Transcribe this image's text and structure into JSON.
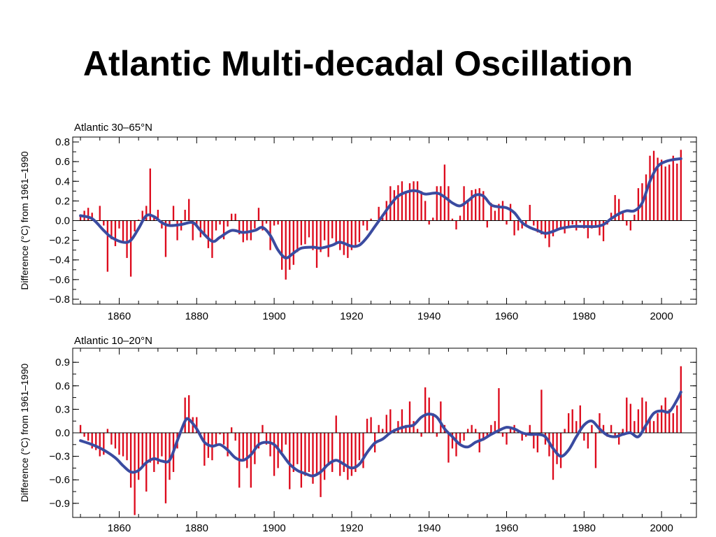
{
  "title": "Atlantic Multi-decadal Oscillation",
  "colors": {
    "bar": "#dd0a1c",
    "smooth": "#3a4ba0",
    "axis": "#000000"
  },
  "chart_data": [
    {
      "type": "bar",
      "panel_label": "Atlantic 30–65°N",
      "ylabel": "Difference (°C) from 1961–1990",
      "xlim": [
        1848,
        2009
      ],
      "ylim": [
        -0.85,
        0.85
      ],
      "yticks": [
        0.8,
        0.6,
        0.4,
        0.2,
        0.0,
        -0.2,
        -0.4,
        -0.6,
        -0.8
      ],
      "ytick_labels": [
        "0.8",
        "0.6",
        "0.4",
        "0.2",
        "0.0",
        "−0.2",
        "−0.4",
        "−0.6",
        "−0.8"
      ],
      "xticks": [
        1860,
        1880,
        1900,
        1920,
        1940,
        1960,
        1980,
        2000
      ],
      "xtick_labels": [
        "1860",
        "1880",
        "1900",
        "1920",
        "1940",
        "1960",
        "1980",
        "2000"
      ],
      "x_start": 1850,
      "values": [
        0.06,
        0.1,
        0.13,
        0.08,
        -0.02,
        0.15,
        -0.05,
        -0.52,
        -0.19,
        -0.26,
        -0.08,
        -0.21,
        -0.38,
        -0.57,
        -0.11,
        0.01,
        0.1,
        0.15,
        0.53,
        0.04,
        0.11,
        -0.08,
        -0.37,
        -0.05,
        0.15,
        -0.2,
        -0.1,
        0.11,
        0.22,
        -0.2,
        -0.05,
        -0.17,
        -0.15,
        -0.28,
        -0.38,
        -0.1,
        -0.04,
        -0.19,
        -0.06,
        0.07,
        0.07,
        -0.14,
        -0.22,
        -0.2,
        -0.2,
        -0.08,
        0.13,
        -0.1,
        -0.03,
        -0.3,
        -0.05,
        -0.04,
        -0.5,
        -0.6,
        -0.5,
        -0.45,
        -0.32,
        -0.25,
        -0.24,
        -0.17,
        -0.3,
        -0.48,
        -0.32,
        -0.2,
        -0.37,
        -0.18,
        -0.24,
        -0.3,
        -0.35,
        -0.38,
        -0.3,
        -0.26,
        -0.22,
        -0.05,
        -0.1,
        0.02,
        0.0,
        0.14,
        0.03,
        0.2,
        0.35,
        0.31,
        0.36,
        0.4,
        0.29,
        0.38,
        0.4,
        0.4,
        0.3,
        0.2,
        -0.04,
        0.03,
        0.35,
        0.35,
        0.57,
        0.35,
        0.02,
        -0.09,
        0.05,
        0.35,
        0.2,
        0.31,
        0.32,
        0.33,
        0.3,
        -0.07,
        0.18,
        0.1,
        0.17,
        0.2,
        -0.04,
        0.17,
        -0.15,
        -0.1,
        -0.08,
        -0.05,
        0.16,
        -0.05,
        -0.12,
        -0.14,
        -0.18,
        -0.27,
        -0.16,
        -0.09,
        -0.07,
        -0.13,
        -0.07,
        -0.04,
        -0.1,
        -0.02,
        -0.08,
        -0.18,
        -0.08,
        -0.05,
        -0.15,
        -0.21,
        -0.04,
        0.08,
        0.26,
        0.22,
        0.09,
        -0.05,
        -0.1,
        0.06,
        0.33,
        0.38,
        0.47,
        0.66,
        0.71,
        0.64,
        0.62,
        0.55,
        0.57,
        0.66,
        0.58,
        0.72
      ],
      "smooth": [
        [
          1850,
          0.05
        ],
        [
          1853,
          0.02
        ],
        [
          1856,
          -0.1
        ],
        [
          1858,
          -0.17
        ],
        [
          1861,
          -0.22
        ],
        [
          1863,
          -0.2
        ],
        [
          1865,
          -0.08
        ],
        [
          1867,
          0.05
        ],
        [
          1869,
          0.04
        ],
        [
          1871,
          -0.02
        ],
        [
          1873,
          -0.05
        ],
        [
          1876,
          -0.04
        ],
        [
          1879,
          -0.02
        ],
        [
          1881,
          -0.1
        ],
        [
          1884,
          -0.21
        ],
        [
          1886,
          -0.17
        ],
        [
          1889,
          -0.1
        ],
        [
          1892,
          -0.12
        ],
        [
          1895,
          -0.1
        ],
        [
          1897,
          -0.07
        ],
        [
          1899,
          -0.15
        ],
        [
          1901,
          -0.3
        ],
        [
          1903,
          -0.38
        ],
        [
          1905,
          -0.33
        ],
        [
          1907,
          -0.28
        ],
        [
          1910,
          -0.27
        ],
        [
          1912,
          -0.28
        ],
        [
          1915,
          -0.25
        ],
        [
          1917,
          -0.22
        ],
        [
          1920,
          -0.26
        ],
        [
          1922,
          -0.25
        ],
        [
          1924,
          -0.17
        ],
        [
          1926,
          -0.06
        ],
        [
          1928,
          0.05
        ],
        [
          1930,
          0.16
        ],
        [
          1932,
          0.25
        ],
        [
          1935,
          0.3
        ],
        [
          1937,
          0.3
        ],
        [
          1939,
          0.27
        ],
        [
          1942,
          0.28
        ],
        [
          1944,
          0.24
        ],
        [
          1946,
          0.18
        ],
        [
          1948,
          0.15
        ],
        [
          1950,
          0.2
        ],
        [
          1952,
          0.26
        ],
        [
          1954,
          0.25
        ],
        [
          1956,
          0.16
        ],
        [
          1958,
          0.14
        ],
        [
          1960,
          0.13
        ],
        [
          1962,
          0.08
        ],
        [
          1964,
          -0.02
        ],
        [
          1966,
          -0.07
        ],
        [
          1968,
          -0.1
        ],
        [
          1970,
          -0.13
        ],
        [
          1972,
          -0.11
        ],
        [
          1974,
          -0.08
        ],
        [
          1977,
          -0.06
        ],
        [
          1980,
          -0.06
        ],
        [
          1983,
          -0.06
        ],
        [
          1985,
          -0.04
        ],
        [
          1987,
          0.02
        ],
        [
          1989,
          0.07
        ],
        [
          1991,
          0.1
        ],
        [
          1993,
          0.1
        ],
        [
          1995,
          0.18
        ],
        [
          1997,
          0.4
        ],
        [
          1999,
          0.55
        ],
        [
          2001,
          0.6
        ],
        [
          2003,
          0.62
        ],
        [
          2005,
          0.63
        ]
      ]
    },
    {
      "type": "bar",
      "panel_label": "Atlantic 10–20°N",
      "ylabel": "Difference (°C) from 1961–1990",
      "xlim": [
        1848,
        2009
      ],
      "ylim": [
        -1.08,
        1.08
      ],
      "yticks": [
        0.9,
        0.6,
        0.3,
        0.0,
        -0.3,
        -0.6,
        -0.9
      ],
      "ytick_labels": [
        "0.9",
        "0.6",
        "0.3",
        "0.0",
        "−0.3",
        "−0.6",
        "−0.9"
      ],
      "xticks": [
        1860,
        1880,
        1900,
        1920,
        1940,
        1960,
        1980,
        2000
      ],
      "xtick_labels": [
        "1860",
        "1880",
        "1900",
        "1920",
        "1940",
        "1960",
        "1980",
        "2000"
      ],
      "x_start": 1850,
      "values": [
        0.1,
        -0.05,
        -0.1,
        -0.2,
        -0.22,
        -0.3,
        -0.28,
        0.05,
        -0.15,
        -0.2,
        -0.28,
        -0.3,
        -0.35,
        -0.7,
        -1.05,
        -0.6,
        -0.45,
        -0.75,
        -0.38,
        -0.5,
        -0.4,
        -0.3,
        -0.9,
        -0.6,
        -0.5,
        -0.2,
        0.05,
        0.45,
        0.48,
        0.2,
        0.2,
        -0.05,
        -0.42,
        -0.32,
        -0.35,
        -0.17,
        -0.02,
        -0.15,
        -0.3,
        0.07,
        -0.1,
        -0.7,
        -0.35,
        -0.45,
        -0.7,
        -0.4,
        -0.2,
        0.1,
        -0.15,
        -0.3,
        -0.55,
        -0.45,
        -0.25,
        -0.15,
        -0.72,
        -0.5,
        -0.4,
        -0.7,
        -0.55,
        -0.5,
        -0.65,
        -0.52,
        -0.82,
        -0.6,
        -0.42,
        -0.5,
        0.22,
        -0.55,
        -0.5,
        -0.6,
        -0.55,
        -0.5,
        -0.35,
        -0.45,
        0.18,
        0.2,
        -0.25,
        0.1,
        0.05,
        0.23,
        0.3,
        0.05,
        0.15,
        0.3,
        0.1,
        0.4,
        0.15,
        0.05,
        -0.05,
        0.58,
        0.45,
        0.25,
        -0.05,
        0.4,
        0.1,
        -0.38,
        -0.2,
        -0.3,
        -0.15,
        -0.1,
        0.05,
        0.1,
        0.05,
        -0.25,
        -0.1,
        -0.05,
        0.1,
        0.15,
        0.57,
        -0.05,
        -0.15,
        0.05,
        0.1,
        0.02,
        -0.1,
        -0.05,
        0.1,
        -0.2,
        -0.25,
        0.55,
        -0.15,
        -0.3,
        -0.6,
        -0.4,
        -0.45,
        0.05,
        0.25,
        0.3,
        0.15,
        0.35,
        -0.1,
        -0.2,
        0.1,
        -0.45,
        0.25,
        0.1,
        -0.05,
        0.1,
        -0.05,
        -0.15,
        0.05,
        0.45,
        0.37,
        0.15,
        0.3,
        0.45,
        0.4,
        0.2,
        0.15,
        0.25,
        0.35,
        0.45,
        0.3,
        0.25,
        0.35,
        0.85
      ],
      "smooth": [
        [
          1850,
          -0.1
        ],
        [
          1853,
          -0.15
        ],
        [
          1856,
          -0.22
        ],
        [
          1859,
          -0.32
        ],
        [
          1861,
          -0.42
        ],
        [
          1863,
          -0.5
        ],
        [
          1865,
          -0.48
        ],
        [
          1867,
          -0.38
        ],
        [
          1869,
          -0.33
        ],
        [
          1871,
          -0.36
        ],
        [
          1873,
          -0.35
        ],
        [
          1875,
          -0.1
        ],
        [
          1877,
          0.15
        ],
        [
          1878,
          0.17
        ],
        [
          1880,
          0.05
        ],
        [
          1882,
          -0.12
        ],
        [
          1884,
          -0.17
        ],
        [
          1886,
          -0.15
        ],
        [
          1888,
          -0.22
        ],
        [
          1890,
          -0.32
        ],
        [
          1892,
          -0.35
        ],
        [
          1894,
          -0.28
        ],
        [
          1896,
          -0.15
        ],
        [
          1898,
          -0.12
        ],
        [
          1900,
          -0.15
        ],
        [
          1902,
          -0.27
        ],
        [
          1904,
          -0.4
        ],
        [
          1906,
          -0.48
        ],
        [
          1908,
          -0.52
        ],
        [
          1910,
          -0.55
        ],
        [
          1912,
          -0.5
        ],
        [
          1914,
          -0.4
        ],
        [
          1916,
          -0.35
        ],
        [
          1918,
          -0.4
        ],
        [
          1920,
          -0.45
        ],
        [
          1922,
          -0.4
        ],
        [
          1924,
          -0.25
        ],
        [
          1926,
          -0.13
        ],
        [
          1928,
          -0.08
        ],
        [
          1930,
          0.0
        ],
        [
          1932,
          0.05
        ],
        [
          1934,
          0.08
        ],
        [
          1936,
          0.1
        ],
        [
          1938,
          0.2
        ],
        [
          1940,
          0.24
        ],
        [
          1942,
          0.2
        ],
        [
          1944,
          0.05
        ],
        [
          1946,
          -0.05
        ],
        [
          1948,
          -0.15
        ],
        [
          1950,
          -0.18
        ],
        [
          1952,
          -0.12
        ],
        [
          1954,
          -0.08
        ],
        [
          1956,
          -0.02
        ],
        [
          1958,
          0.03
        ],
        [
          1960,
          0.07
        ],
        [
          1962,
          0.05
        ],
        [
          1964,
          0.0
        ],
        [
          1966,
          -0.02
        ],
        [
          1968,
          -0.02
        ],
        [
          1970,
          -0.05
        ],
        [
          1972,
          -0.2
        ],
        [
          1974,
          -0.3
        ],
        [
          1976,
          -0.22
        ],
        [
          1978,
          -0.05
        ],
        [
          1980,
          0.1
        ],
        [
          1982,
          0.15
        ],
        [
          1984,
          0.05
        ],
        [
          1986,
          -0.03
        ],
        [
          1988,
          -0.05
        ],
        [
          1990,
          -0.02
        ],
        [
          1992,
          0.0
        ],
        [
          1994,
          -0.05
        ],
        [
          1996,
          0.1
        ],
        [
          1998,
          0.25
        ],
        [
          2000,
          0.28
        ],
        [
          2002,
          0.27
        ],
        [
          2004,
          0.42
        ],
        [
          2005,
          0.52
        ]
      ]
    }
  ]
}
